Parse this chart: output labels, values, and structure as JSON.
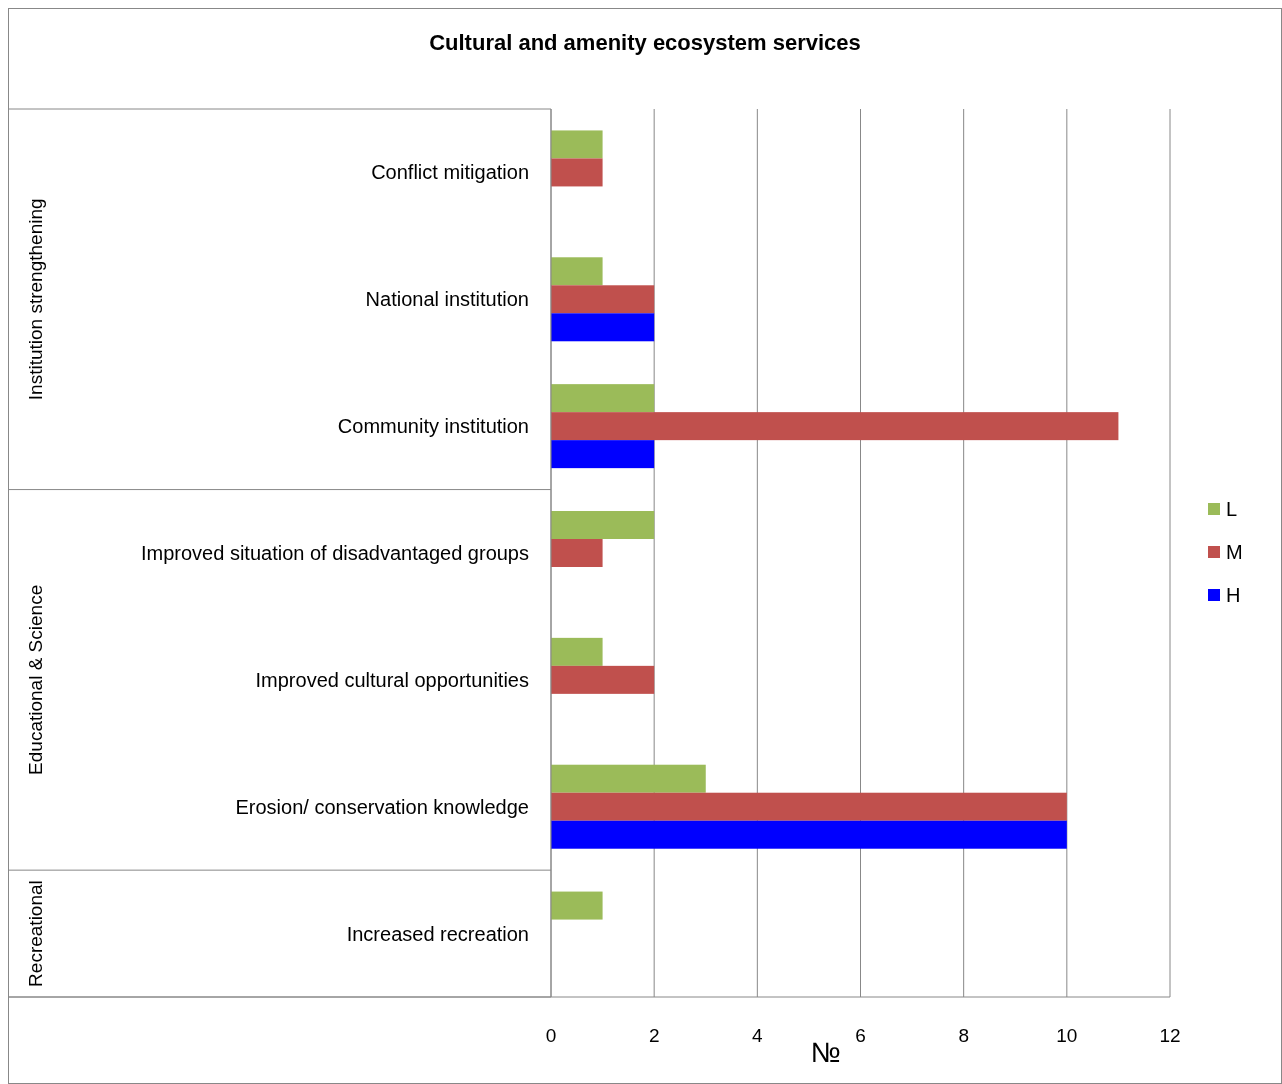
{
  "chart_data": {
    "type": "bar",
    "orientation": "horizontal",
    "title": "Cultural  and amenity ecosystem services",
    "xlabel": "№",
    "categories": [
      "Conflict mitigation",
      "National institution",
      "Community institution",
      "Improved situation of disadvantaged groups",
      "Improved cultural opportunities",
      "Erosion/ conservation knowledge",
      "Increased recreation"
    ],
    "series": [
      {
        "name": "L",
        "color": "#9bbb59",
        "values": [
          1,
          1,
          2,
          2,
          1,
          3,
          1
        ]
      },
      {
        "name": "M",
        "color": "#c0504d",
        "values": [
          1,
          2,
          11,
          1,
          2,
          10,
          null
        ]
      },
      {
        "name": "H",
        "color": "#0000ff",
        "values": [
          null,
          2,
          2,
          null,
          null,
          10,
          null
        ]
      }
    ],
    "xlim": [
      0,
      12
    ],
    "xticks": [
      0,
      2,
      4,
      6,
      8,
      10,
      12
    ],
    "grid": "x",
    "legend": "right",
    "annotations": [
      "Institution strengthening",
      "Educational & Science",
      "Recreational"
    ]
  }
}
